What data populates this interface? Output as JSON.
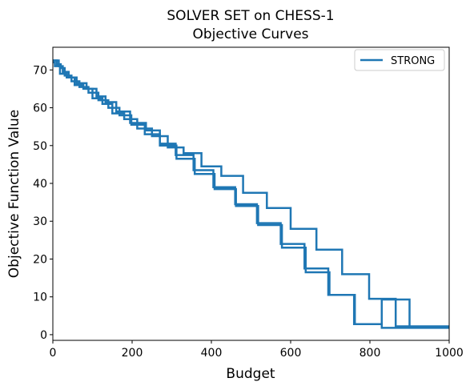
{
  "chart_data": {
    "type": "line",
    "title": "SOLVER SET on CHESS-1",
    "subtitle": "Objective Curves",
    "xlabel": "Budget",
    "ylabel": "Objective Function Value",
    "xlim": [
      0,
      1000
    ],
    "ylim": [
      -1.5,
      76
    ],
    "x_ticks": [
      0,
      200,
      400,
      600,
      800,
      1000
    ],
    "y_ticks": [
      0,
      10,
      20,
      30,
      40,
      50,
      60,
      70
    ],
    "grid": false,
    "legend_position": "top-right",
    "series": [
      {
        "name": "STRONG",
        "color": "#1f77b4",
        "step_curves": [
          {
            "breakpoints": [
              0,
              10,
              20,
              30,
              47,
              67,
              90,
              115,
              140,
              168,
              198,
              232,
              270,
              312,
              358,
              408,
              462,
              518,
              578,
              638,
              698,
              762,
              830,
              900,
              1000
            ],
            "levels": [
              72.5,
              71.5,
              70.5,
              68.5,
              67.0,
              65.5,
              64.0,
              62.0,
              60.0,
              58.0,
              55.5,
              53.0,
              50.0,
              46.5,
              42.5,
              38.5,
              34.0,
              29.0,
              23.0,
              16.5,
              10.5,
              2.8,
              1.8,
              1.8
            ]
          },
          {
            "breakpoints": [
              0,
              15,
              25,
              40,
              60,
              85,
              110,
              133,
              160,
              195,
              235,
              270,
              310,
              355,
              405,
              460,
              515,
              575,
              635,
              695,
              760,
              830,
              900,
              1000
            ],
            "levels": [
              72.5,
              71.0,
              69.5,
              68.0,
              66.5,
              65.0,
              63.0,
              61.5,
              59.0,
              56.0,
              54.0,
              50.5,
              47.5,
              43.5,
              39.0,
              34.5,
              29.5,
              24.0,
              17.5,
              10.5,
              2.8,
              9.3,
              2.0
            ]
          },
          {
            "breakpoints": [
              0,
              5,
              18,
              35,
              55,
              77,
              100,
              125,
              150,
              180,
              213,
              250,
              290,
              330,
              375,
              425,
              480,
              540,
              600,
              665,
              730,
              798,
              865,
              1000
            ],
            "levels": [
              72.0,
              71.0,
              69.0,
              68.0,
              66.0,
              65.0,
              62.5,
              61.0,
              58.5,
              57.0,
              54.5,
              52.5,
              49.5,
              48.0,
              44.5,
              42.0,
              37.5,
              33.5,
              28.0,
              22.5,
              16.0,
              9.5,
              2.2
            ]
          }
        ]
      }
    ]
  }
}
